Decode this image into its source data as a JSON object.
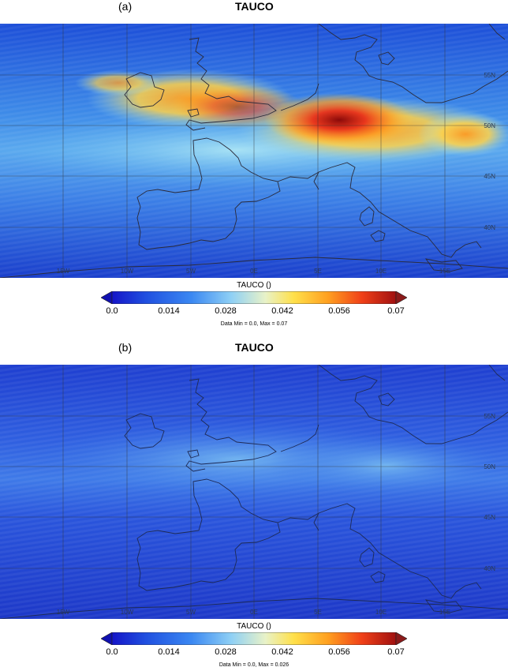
{
  "panels": [
    {
      "label": "(a)",
      "title": "TAUCO",
      "colorbar_title": "TAUCO ()",
      "colorbar_ticks": [
        "0.0",
        "0.014",
        "0.028",
        "0.042",
        "0.056",
        "0.07"
      ],
      "data_range_text": "Data Min = 0.0, Max = 0.07",
      "lat_labels": [
        "55N",
        "50N",
        "45N",
        "40N"
      ],
      "lon_labels": [
        "15W",
        "10W",
        "5W",
        "0E",
        "5E",
        "10E",
        "15E"
      ]
    },
    {
      "label": "(b)",
      "title": "TAUCO",
      "colorbar_title": "TAUCO ()",
      "colorbar_ticks": [
        "0.0",
        "0.014",
        "0.028",
        "0.042",
        "0.056",
        "0.07"
      ],
      "data_range_text": "Data Min = 0.0, Max = 0.026",
      "lat_labels": [
        "55N",
        "50N",
        "45N",
        "40N"
      ],
      "lon_labels": [
        "15W",
        "10W",
        "5W",
        "0E",
        "5E",
        "10E",
        "15E"
      ]
    }
  ],
  "colors": {
    "colormap": [
      "#1515c8",
      "#2050e0",
      "#3b88f2",
      "#8fd0f5",
      "#e8f2c8",
      "#ffe04a",
      "#ffa020",
      "#f04018",
      "#a01010"
    ],
    "under_color": "#1010b0",
    "over_color": "#8b1a1a",
    "coastline": "#2a2a3a",
    "grid": "#333333"
  }
}
